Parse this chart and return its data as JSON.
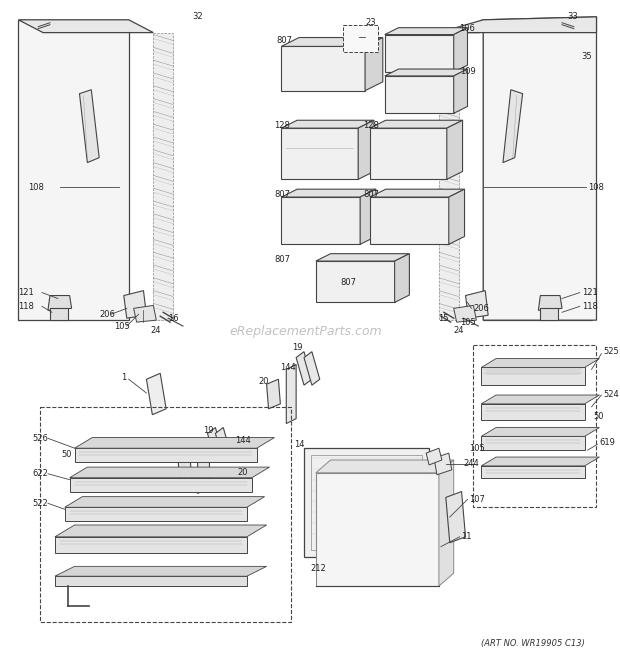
{
  "art_no": "(ART NO. WR19905 C13)",
  "bg_color": "#ffffff",
  "line_color": "#444444",
  "wm_color": "#bbbbbb",
  "wm_text": "eReplacementParts.com",
  "fig_width": 6.2,
  "fig_height": 6.61,
  "dpi": 100
}
